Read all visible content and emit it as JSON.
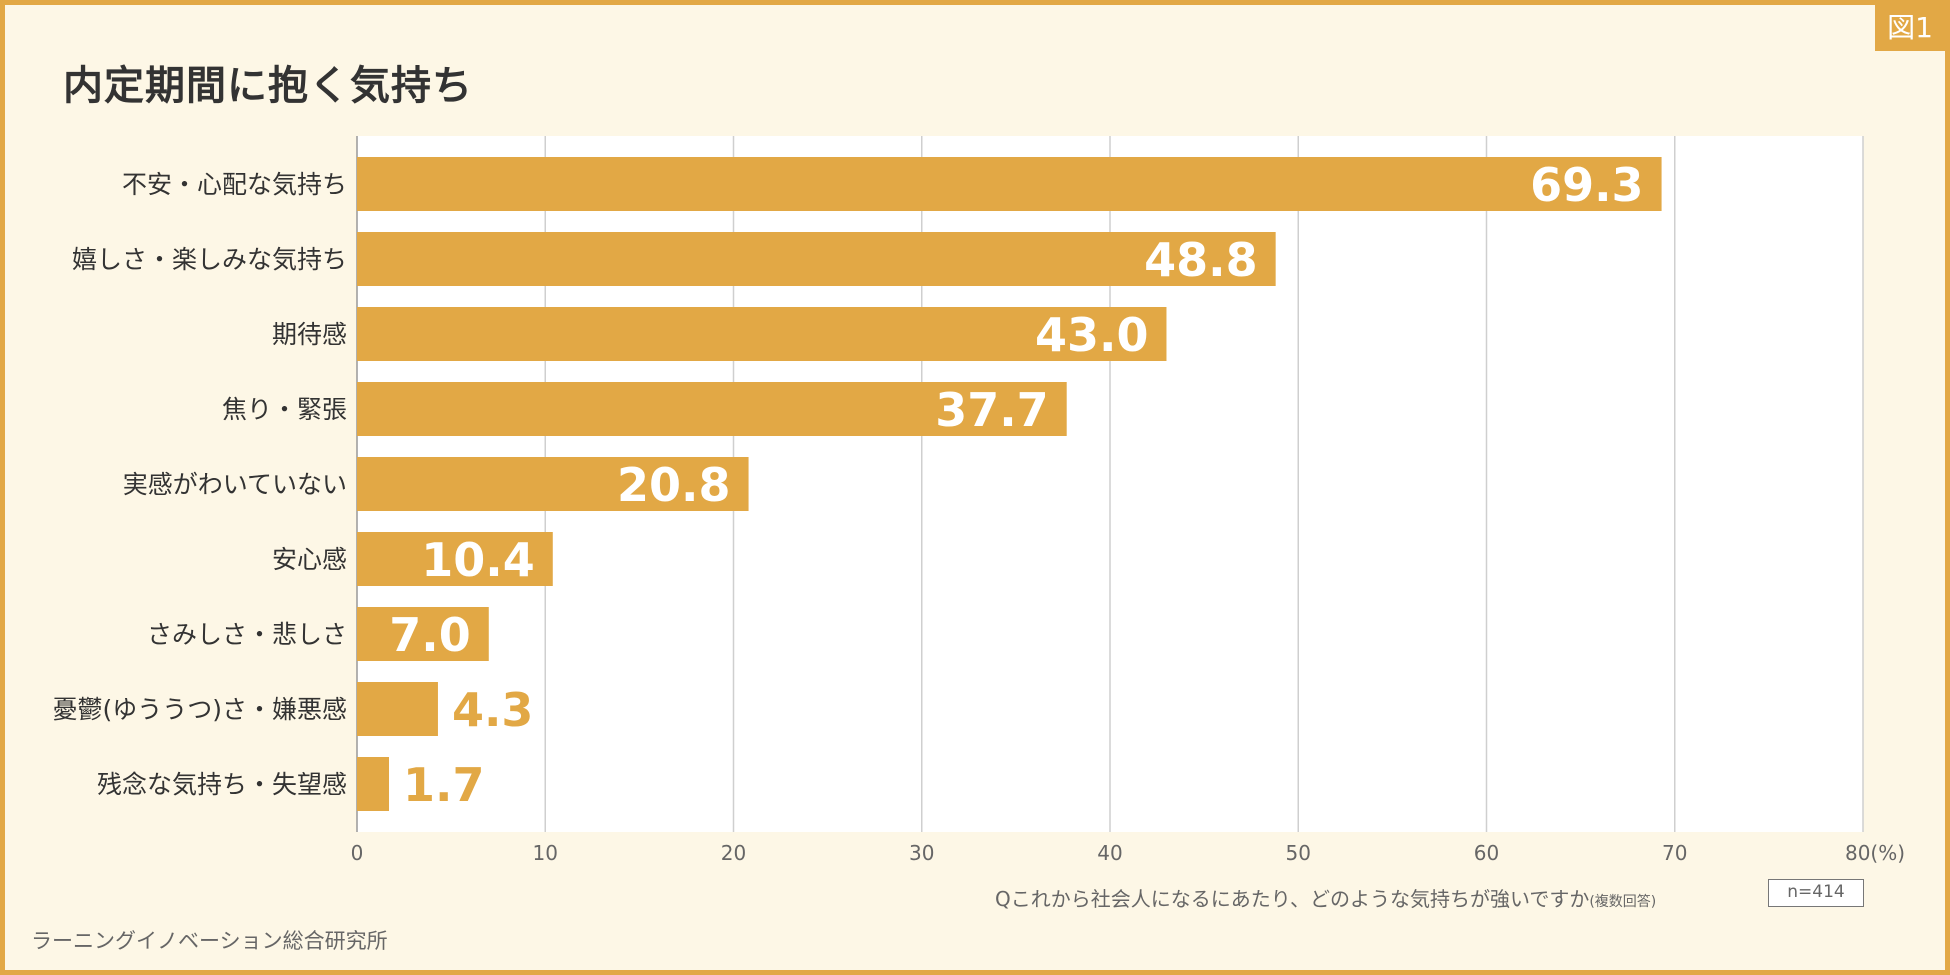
{
  "figure_label": "図1",
  "chart_data": {
    "type": "bar",
    "orientation": "horizontal",
    "title": "内定期間に抱く気持ち",
    "categories": [
      "不安・心配な気持ち",
      "嬉しさ・楽しみな気持ち",
      "期待感",
      "焦り・緊張",
      "実感がわいていない",
      "安心感",
      "さみしさ・悲しさ",
      "憂鬱(ゆううつ)さ・嫌悪感",
      "残念な気持ち・失望感"
    ],
    "values": [
      69.3,
      48.8,
      43.0,
      37.7,
      20.8,
      10.4,
      7.0,
      4.3,
      1.7
    ],
    "value_labels": [
      "69.3",
      "48.8",
      "43.0",
      "37.7",
      "20.8",
      "10.4",
      "7.0",
      "4.3",
      "1.7"
    ],
    "xlim": [
      0,
      80
    ],
    "xticks": [
      "0",
      "10",
      "20",
      "30",
      "40",
      "50",
      "60",
      "70",
      "80(%)"
    ],
    "grid": true,
    "bar_color": "#e2a845",
    "plot_background": "#ffffff",
    "question": "Qこれから社会人になるにあたり、どのような気持ちが強いですか",
    "question_note": "(複数回答)",
    "sample_size": "n=414"
  },
  "source": "ラーニングイノベーション総合研究所"
}
